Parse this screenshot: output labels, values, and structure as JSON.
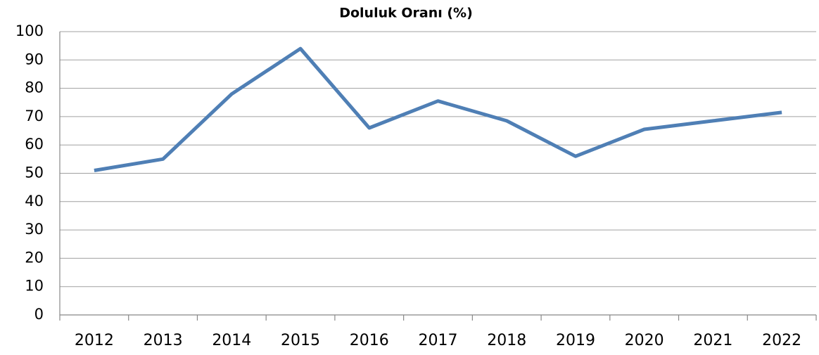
{
  "chart_data": {
    "type": "line",
    "title": "Doluluk Oranı (%)",
    "categories": [
      "2012",
      "2013",
      "2014",
      "2015",
      "2016",
      "2017",
      "2018",
      "2019",
      "2020",
      "2021",
      "2022"
    ],
    "values": [
      51,
      55,
      78,
      94,
      66,
      75.5,
      68.5,
      56,
      65.5,
      68.5,
      71.5
    ],
    "color": "#4f7fb5",
    "ylim": [
      0,
      100
    ],
    "yticks": [
      0,
      10,
      20,
      30,
      40,
      50,
      60,
      70,
      80,
      90,
      100
    ],
    "grid": true
  }
}
